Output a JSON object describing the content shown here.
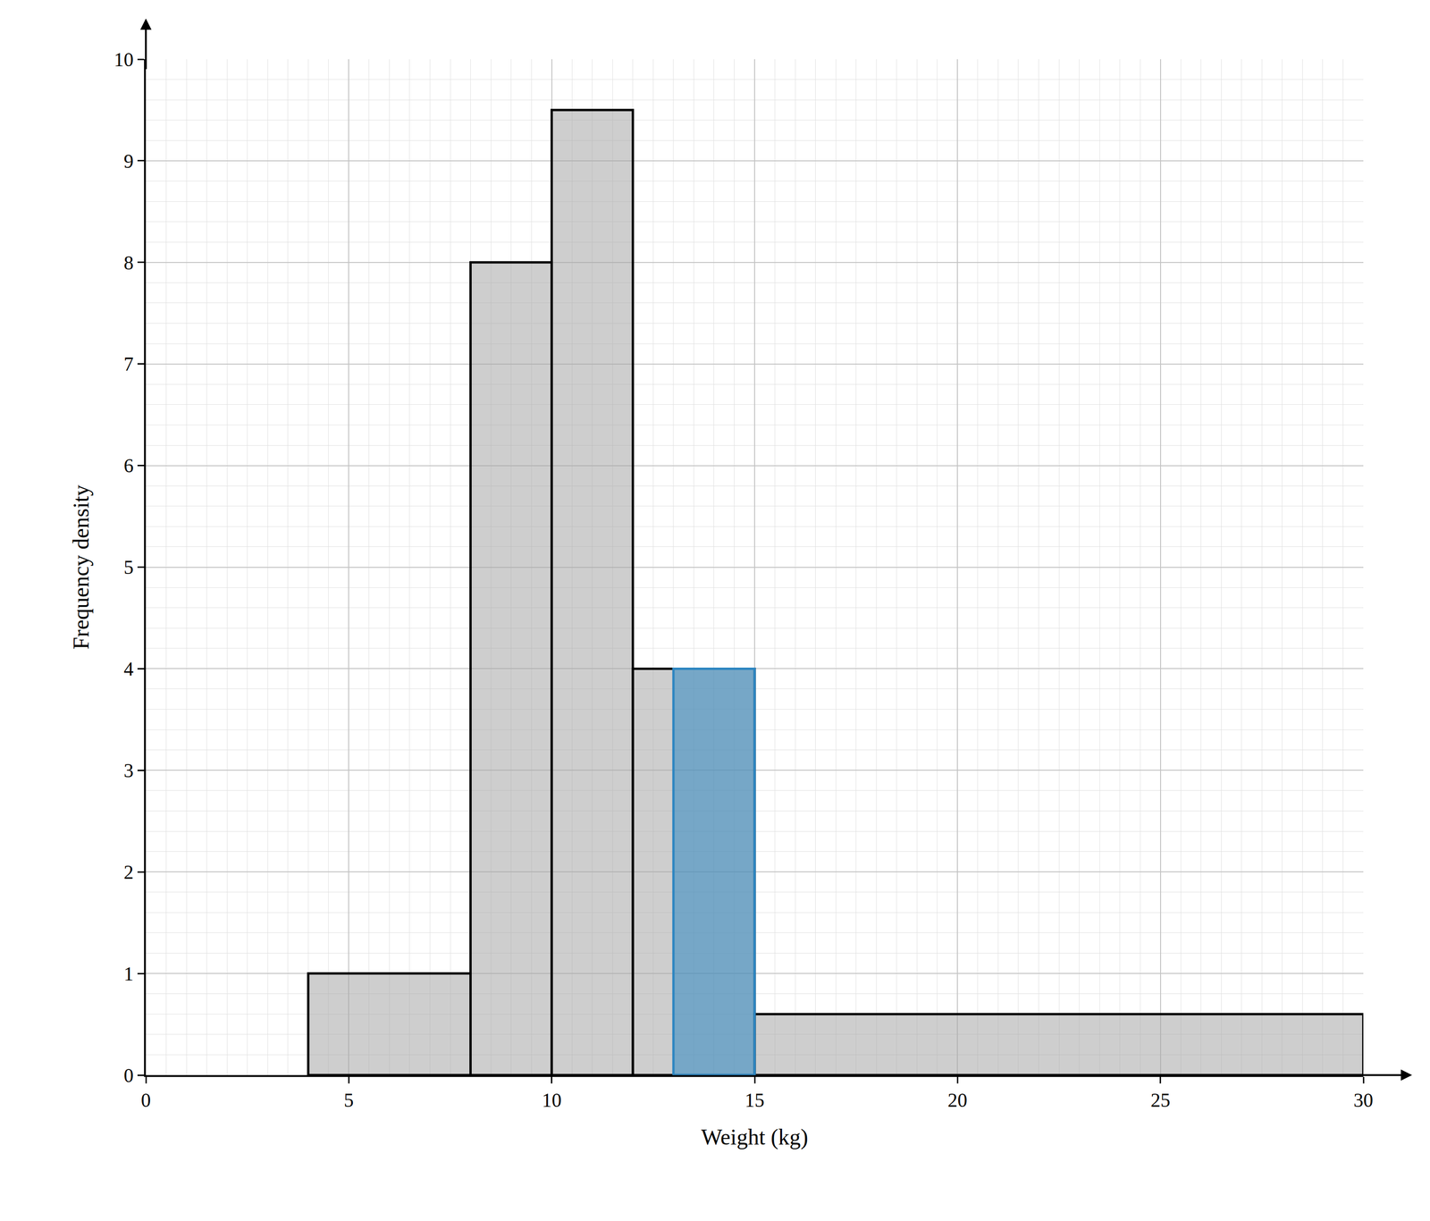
{
  "chart_data": {
    "type": "histogram",
    "x_label": "Weight (kg)",
    "y_label": "Frequency density",
    "bins": [
      4,
      8,
      10,
      12,
      15,
      30
    ],
    "values": [
      1,
      8,
      9.5,
      4,
      0.6
    ],
    "color": "#a6a6a6",
    "highlight": {
      "bins": [
        13,
        15
      ],
      "values": [
        4
      ],
      "color": "#2e86c1"
    },
    "xlim": [
      0,
      30
    ],
    "xticks": [
      0,
      5,
      10,
      15,
      20,
      25,
      30
    ],
    "ylim": [
      0,
      10
    ],
    "yticks": [
      0,
      1,
      2,
      3,
      4,
      5,
      6,
      7,
      8,
      9,
      10
    ],
    "grid": true
  }
}
